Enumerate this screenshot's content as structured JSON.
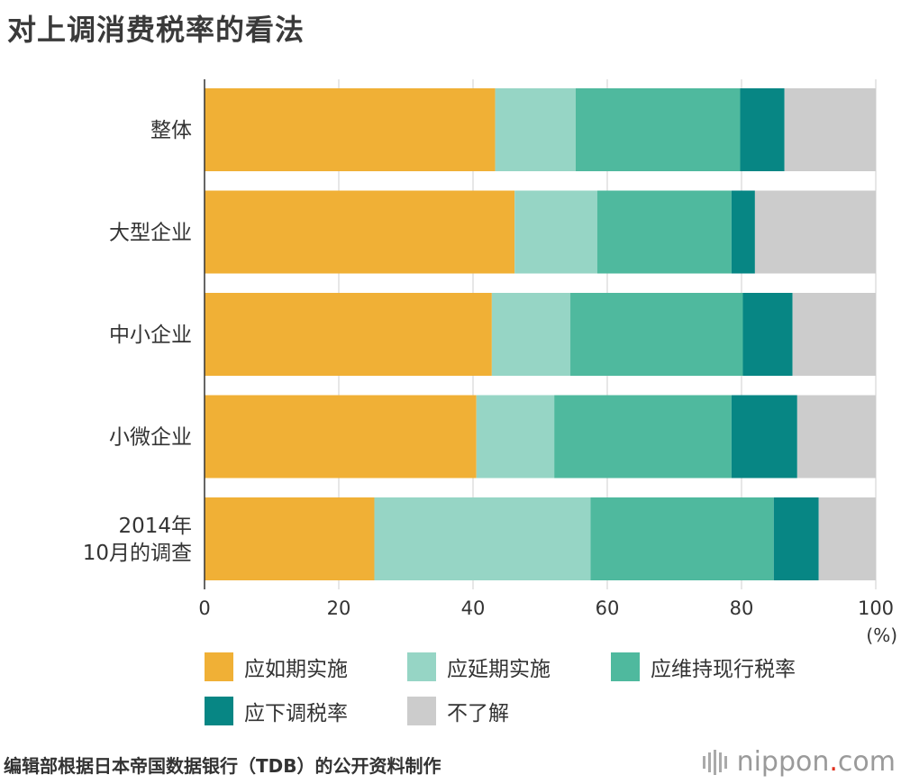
{
  "title": "对上调消费税率的看法",
  "source": "编辑部根据日本帝国数据银行（TDB）的公开资料制作",
  "logo": {
    "name": "nippon",
    "dot": ".",
    "suffix": "com"
  },
  "chart_data": {
    "type": "bar",
    "orientation": "horizontal",
    "stacked": true,
    "categories": [
      "整体",
      "大型企业",
      "中小企业",
      "小微企业",
      "2014年\n10月的调查"
    ],
    "series": [
      {
        "name": "应如期实施",
        "color": "#F0B036",
        "values": [
          43.3,
          46.2,
          42.8,
          40.5,
          25.3
        ]
      },
      {
        "name": "应延期实施",
        "color": "#96D5C5",
        "values": [
          12.0,
          12.3,
          11.7,
          11.6,
          32.2
        ]
      },
      {
        "name": "应维持现行税率",
        "color": "#4FB99E",
        "values": [
          24.5,
          20.0,
          25.7,
          26.4,
          27.3
        ]
      },
      {
        "name": "应下调税率",
        "color": "#078684",
        "values": [
          6.6,
          3.5,
          7.4,
          9.8,
          6.7
        ]
      },
      {
        "name": "不了解",
        "color": "#CCCCCC",
        "values": [
          13.6,
          18.0,
          12.4,
          11.7,
          8.5
        ]
      }
    ],
    "xlim": [
      0,
      100
    ],
    "xticks": [
      0,
      20,
      40,
      60,
      80,
      100
    ],
    "xunit": "(%)",
    "grid": true,
    "legend_position": "bottom"
  }
}
